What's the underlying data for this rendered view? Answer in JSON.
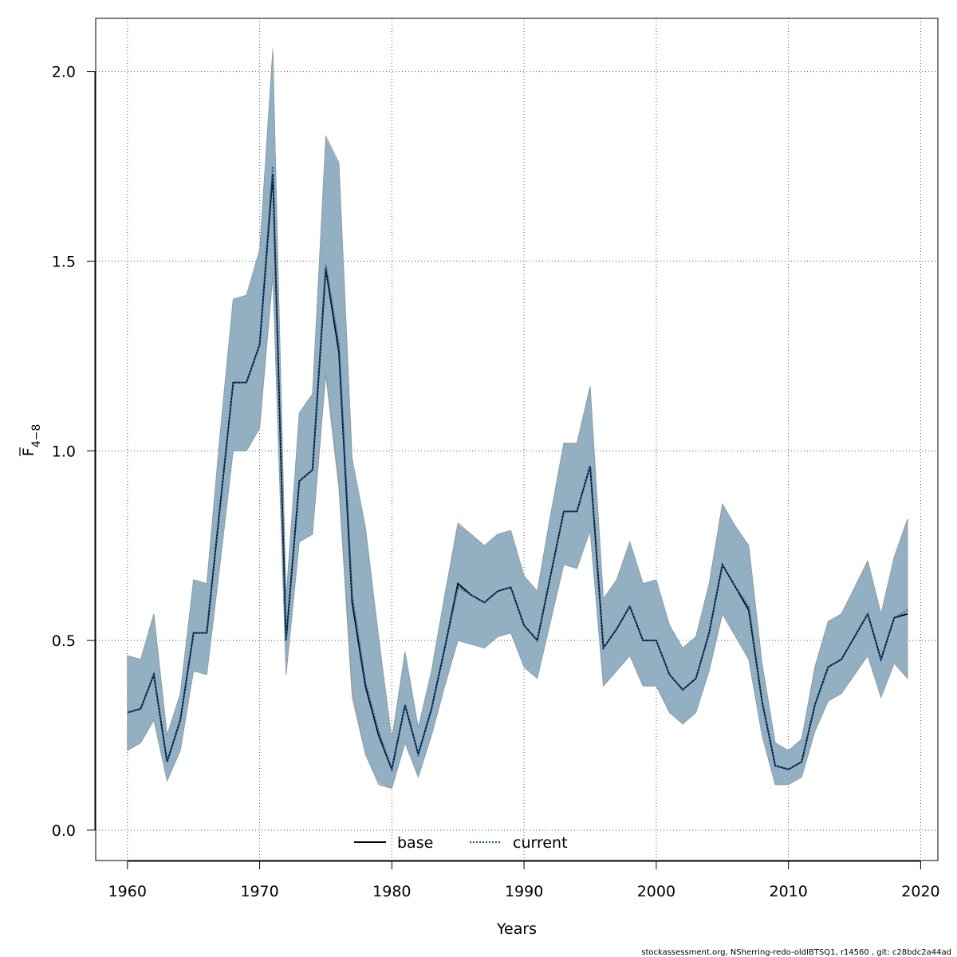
{
  "chart_data": {
    "type": "line",
    "title": "",
    "xlabel": "Years",
    "ylabel_main": "F",
    "ylabel_sub": "4−8",
    "xlim": [
      1957.6,
      2021.3
    ],
    "ylim": [
      -0.08,
      2.14
    ],
    "x_ticks": [
      1960,
      1970,
      1980,
      1990,
      2000,
      2010,
      2020
    ],
    "y_ticks": [
      0.0,
      0.5,
      1.0,
      1.5,
      2.0
    ],
    "y_tick_labels": [
      "0.0",
      "0.5",
      "1.0",
      "1.5",
      "2.0"
    ],
    "grid": true,
    "legend_position": "bottom",
    "x": [
      1960,
      1961,
      1962,
      1963,
      1964,
      1965,
      1966,
      1967,
      1968,
      1969,
      1970,
      1971,
      1972,
      1973,
      1974,
      1975,
      1976,
      1977,
      1978,
      1979,
      1980,
      1981,
      1982,
      1983,
      1984,
      1985,
      1986,
      1987,
      1988,
      1989,
      1990,
      1991,
      1992,
      1993,
      1994,
      1995,
      1996,
      1997,
      1998,
      1999,
      2000,
      2001,
      2002,
      2003,
      2004,
      2005,
      2006,
      2007,
      2008,
      2009,
      2010,
      2011,
      2012,
      2013,
      2014,
      2015,
      2016,
      2017,
      2018,
      2019
    ],
    "series": [
      {
        "name": "base",
        "color": "#000000",
        "line_style": "solid",
        "band_color": "#c8a6a2",
        "values": [
          0.31,
          0.32,
          0.41,
          0.18,
          0.29,
          0.52,
          0.52,
          0.85,
          1.18,
          1.18,
          1.28,
          1.73,
          0.5,
          0.92,
          0.95,
          1.48,
          1.26,
          0.6,
          0.38,
          0.25,
          0.16,
          0.33,
          0.2,
          0.32,
          0.48,
          0.65,
          0.62,
          0.6,
          0.63,
          0.64,
          0.54,
          0.5,
          0.67,
          0.84,
          0.84,
          0.96,
          0.48,
          0.53,
          0.59,
          0.5,
          0.5,
          0.41,
          0.37,
          0.4,
          0.52,
          0.7,
          0.64,
          0.58,
          0.34,
          0.17,
          0.16,
          0.18,
          0.33,
          0.43,
          0.45,
          0.51,
          0.57,
          0.45,
          0.56,
          0.57
        ],
        "lower": [
          0.21,
          0.23,
          0.29,
          0.13,
          0.21,
          0.42,
          0.41,
          0.7,
          1.0,
          1.0,
          1.06,
          1.46,
          0.41,
          0.76,
          0.78,
          1.2,
          0.9,
          0.35,
          0.2,
          0.12,
          0.11,
          0.23,
          0.14,
          0.25,
          0.38,
          0.5,
          0.49,
          0.48,
          0.51,
          0.52,
          0.43,
          0.4,
          0.55,
          0.7,
          0.69,
          0.79,
          0.38,
          0.42,
          0.46,
          0.38,
          0.38,
          0.31,
          0.28,
          0.31,
          0.42,
          0.57,
          0.51,
          0.45,
          0.25,
          0.12,
          0.12,
          0.14,
          0.26,
          0.34,
          0.36,
          0.41,
          0.46,
          0.35,
          0.44,
          0.4
        ],
        "upper": [
          0.46,
          0.45,
          0.57,
          0.25,
          0.36,
          0.66,
          0.65,
          1.04,
          1.4,
          1.41,
          1.53,
          2.05,
          0.61,
          1.1,
          1.15,
          1.82,
          1.75,
          0.96,
          0.79,
          0.5,
          0.24,
          0.47,
          0.27,
          0.42,
          0.62,
          0.81,
          0.78,
          0.75,
          0.78,
          0.79,
          0.67,
          0.63,
          0.83,
          1.02,
          1.02,
          1.17,
          0.61,
          0.66,
          0.76,
          0.65,
          0.66,
          0.54,
          0.48,
          0.51,
          0.65,
          0.86,
          0.8,
          0.75,
          0.44,
          0.23,
          0.21,
          0.24,
          0.43,
          0.55,
          0.57,
          0.64,
          0.71,
          0.57,
          0.72,
          0.82
        ]
      },
      {
        "name": "current",
        "color": "#1f5fa0",
        "line_style": "dotted",
        "band_color": "#7fb0ca",
        "values": [
          0.31,
          0.32,
          0.41,
          0.18,
          0.29,
          0.52,
          0.52,
          0.85,
          1.18,
          1.18,
          1.28,
          1.75,
          0.5,
          0.92,
          0.95,
          1.49,
          1.28,
          0.62,
          0.39,
          0.26,
          0.16,
          0.33,
          0.2,
          0.32,
          0.48,
          0.64,
          0.62,
          0.6,
          0.63,
          0.64,
          0.54,
          0.5,
          0.67,
          0.84,
          0.84,
          0.96,
          0.48,
          0.53,
          0.59,
          0.5,
          0.5,
          0.41,
          0.37,
          0.4,
          0.52,
          0.7,
          0.64,
          0.59,
          0.34,
          0.17,
          0.16,
          0.18,
          0.33,
          0.43,
          0.45,
          0.51,
          0.57,
          0.45,
          0.56,
          0.58
        ],
        "lower": [
          0.21,
          0.23,
          0.29,
          0.13,
          0.21,
          0.42,
          0.41,
          0.7,
          1.0,
          1.0,
          1.06,
          1.47,
          0.41,
          0.76,
          0.78,
          1.21,
          0.92,
          0.37,
          0.2,
          0.13,
          0.11,
          0.23,
          0.14,
          0.25,
          0.38,
          0.5,
          0.49,
          0.48,
          0.51,
          0.52,
          0.43,
          0.4,
          0.55,
          0.7,
          0.69,
          0.79,
          0.38,
          0.42,
          0.46,
          0.38,
          0.38,
          0.31,
          0.28,
          0.31,
          0.42,
          0.57,
          0.51,
          0.45,
          0.25,
          0.12,
          0.12,
          0.14,
          0.26,
          0.34,
          0.36,
          0.41,
          0.46,
          0.35,
          0.44,
          0.4
        ],
        "upper": [
          0.46,
          0.45,
          0.57,
          0.25,
          0.36,
          0.66,
          0.65,
          1.04,
          1.4,
          1.41,
          1.53,
          2.06,
          0.61,
          1.1,
          1.15,
          1.83,
          1.76,
          0.98,
          0.8,
          0.51,
          0.24,
          0.47,
          0.27,
          0.42,
          0.62,
          0.8,
          0.78,
          0.75,
          0.78,
          0.79,
          0.67,
          0.63,
          0.83,
          1.02,
          1.02,
          1.17,
          0.61,
          0.66,
          0.76,
          0.65,
          0.66,
          0.54,
          0.48,
          0.51,
          0.65,
          0.86,
          0.8,
          0.75,
          0.44,
          0.23,
          0.21,
          0.24,
          0.43,
          0.55,
          0.57,
          0.64,
          0.71,
          0.57,
          0.72,
          0.82
        ]
      }
    ]
  },
  "footer": {
    "text": "stockassessment.org, NSherring-redo-oldIBTSQ1, r14560 , git: c28bdc2a44ad"
  }
}
